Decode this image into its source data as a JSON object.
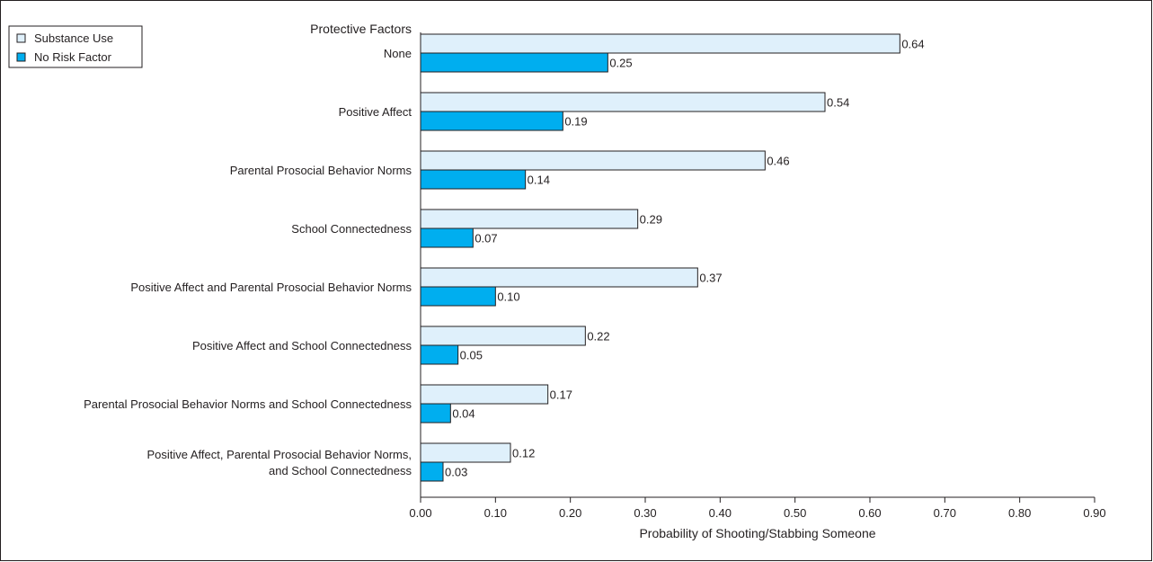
{
  "chart_data": {
    "type": "bar",
    "orientation": "horizontal",
    "category_axis_title": "Protective Factors",
    "xlabel": "Probability of Shooting/Stabbing Someone",
    "xlim": [
      0,
      0.9
    ],
    "xticks": [
      "0.00",
      "0.10",
      "0.20",
      "0.30",
      "0.40",
      "0.50",
      "0.60",
      "0.70",
      "0.80",
      "0.90"
    ],
    "grid": false,
    "legend_position": "top-left",
    "categories": [
      [
        "None"
      ],
      [
        "Positive Affect"
      ],
      [
        "Parental Prosocial Behavior Norms"
      ],
      [
        "School Connectedness"
      ],
      [
        "Positive Affect and Parental Prosocial Behavior Norms"
      ],
      [
        "Positive Affect and School Connectedness"
      ],
      [
        "Parental Prosocial Behavior Norms and School Connectedness"
      ],
      [
        "Positive Affect, Parental Prosocial Behavior Norms,",
        "and School Connectedness"
      ]
    ],
    "series": [
      {
        "name": "Substance Use",
        "color": "#dff0fb",
        "values": [
          0.64,
          0.54,
          0.46,
          0.29,
          0.37,
          0.22,
          0.17,
          0.12
        ],
        "labels": [
          "0.64",
          "0.54",
          "0.46",
          "0.29",
          "0.37",
          "0.22",
          "0.17",
          "0.12"
        ]
      },
      {
        "name": "No Risk Factor",
        "color": "#00aeef",
        "values": [
          0.25,
          0.19,
          0.14,
          0.07,
          0.1,
          0.05,
          0.04,
          0.03
        ],
        "labels": [
          "0.25",
          "0.19",
          "0.14",
          "0.07",
          "0.10",
          "0.05",
          "0.04",
          "0.03"
        ]
      }
    ]
  }
}
